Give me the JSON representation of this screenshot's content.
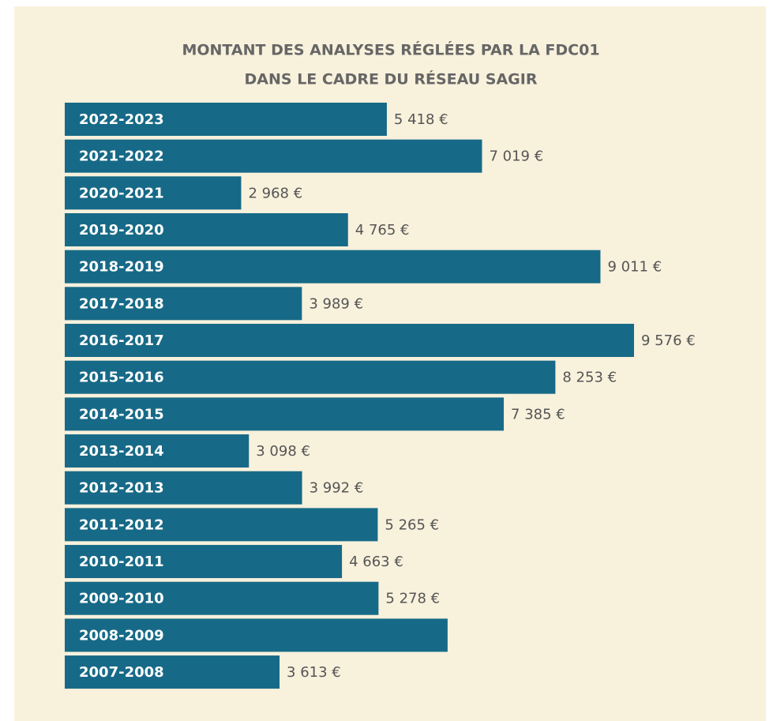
{
  "chart_data": {
    "type": "bar",
    "orientation": "horizontal",
    "title": [
      "MONTANT DES ANALYSES RÉGLÉES PAR LA FDC01",
      "DANS LE CADRE DU RÉSEAU SAGIR"
    ],
    "categories": [
      "2022-2023",
      "2021-2022",
      "2020-2021",
      "2019-2020",
      "2018-2019",
      "2017-2018",
      "2016-2017",
      "2015-2016",
      "2014-2015",
      "2013-2014",
      "2012-2013",
      "2011-2012",
      "2010-2011",
      "2009-2010",
      "2008-2009",
      "2007-2008"
    ],
    "values": [
      5418,
      7019,
      2968,
      4765,
      9011,
      3989,
      9576,
      8253,
      7385,
      3098,
      3992,
      5265,
      4663,
      5278,
      6440,
      3613
    ],
    "value_labels": [
      "5 418 €",
      "7 019 €",
      "2 968 €",
      "4 765 €",
      "9 011 €",
      "3 989 €",
      "9 576 €",
      "8 253 €",
      "7 385 €",
      "3 098 €",
      "3 992 €",
      "5 265 €",
      "4 663 €",
      "5 278 €",
      null,
      "3 613 €"
    ],
    "color": "#176a87"
  }
}
